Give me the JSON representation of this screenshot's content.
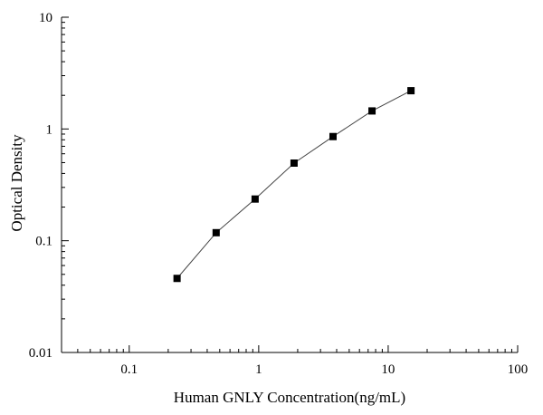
{
  "chart_data": {
    "type": "line",
    "title": "",
    "xlabel": "Human GNLY Concentration(ng/mL)",
    "ylabel": "Optical Density",
    "xscale": "log",
    "yscale": "log",
    "xlim": [
      0.03,
      100
    ],
    "ylim": [
      0.01,
      10
    ],
    "x_ticks": [
      0.1,
      1,
      10,
      100
    ],
    "x_tick_labels": [
      "0.1",
      "1",
      "10",
      "100"
    ],
    "y_ticks": [
      0.01,
      0.1,
      1,
      10
    ],
    "y_tick_labels": [
      "0.01",
      "0.1",
      "1",
      "10"
    ],
    "grid": false,
    "legend": "none",
    "series": [
      {
        "x": [
          0.234,
          0.469,
          0.938,
          1.875,
          3.75,
          7.5,
          15
        ],
        "y": [
          0.046,
          0.118,
          0.236,
          0.495,
          0.855,
          1.45,
          2.2
        ],
        "marker": "square",
        "color": "#000000",
        "line_color": "#444444"
      }
    ]
  }
}
